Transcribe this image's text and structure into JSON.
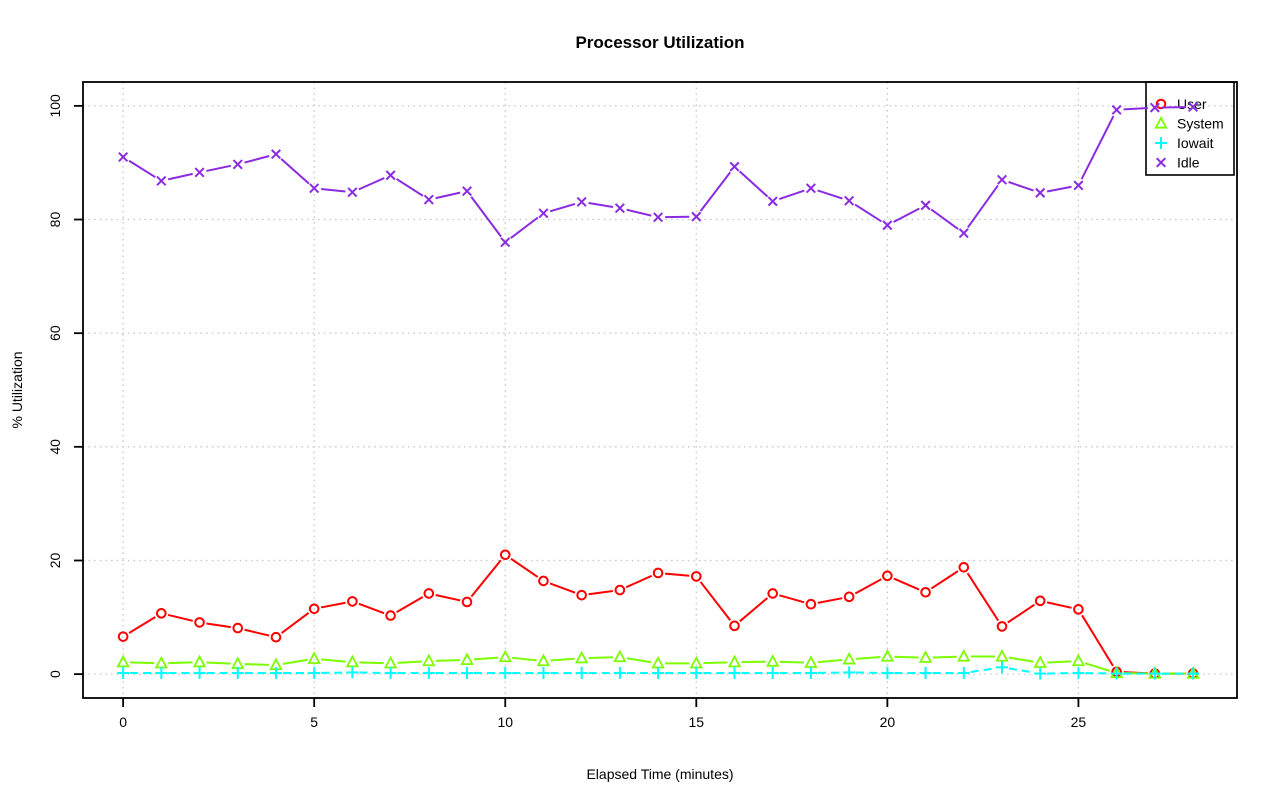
{
  "chart_data": {
    "type": "line",
    "title": "Processor Utilization",
    "xlabel": "Elapsed Time (minutes)",
    "ylabel": "% Utilization",
    "x": [
      0,
      1,
      2,
      3,
      4,
      5,
      6,
      7,
      8,
      9,
      10,
      11,
      12,
      13,
      14,
      15,
      16,
      17,
      18,
      19,
      20,
      21,
      22,
      23,
      24,
      25,
      26,
      27,
      28
    ],
    "series": [
      {
        "name": "User",
        "marker": "circle",
        "color": "#ff0000",
        "dash": "solid",
        "values": [
          6.6,
          10.7,
          9.1,
          8.1,
          6.5,
          11.5,
          12.8,
          10.3,
          14.2,
          12.7,
          21.0,
          16.4,
          13.9,
          14.8,
          17.8,
          17.2,
          8.5,
          14.2,
          12.3,
          13.6,
          17.3,
          14.4,
          18.8,
          8.4,
          12.9,
          11.4,
          0.4,
          0.1,
          0.1
        ]
      },
      {
        "name": "System",
        "marker": "triangle",
        "color": "#7cfc00",
        "dash": "solid",
        "values": [
          2.1,
          1.9,
          2.1,
          1.8,
          1.6,
          2.7,
          2.1,
          1.9,
          2.3,
          2.5,
          3.0,
          2.3,
          2.8,
          3.0,
          1.9,
          1.9,
          2.1,
          2.2,
          2.0,
          2.6,
          3.1,
          2.9,
          3.1,
          3.1,
          2.0,
          2.3,
          0.2,
          0.1,
          0.1
        ]
      },
      {
        "name": "Iowait",
        "marker": "plus",
        "color": "#00ffff",
        "dash": "dashed",
        "values": [
          0.2,
          0.2,
          0.2,
          0.2,
          0.2,
          0.2,
          0.3,
          0.2,
          0.2,
          0.2,
          0.2,
          0.2,
          0.2,
          0.2,
          0.2,
          0.2,
          0.2,
          0.2,
          0.2,
          0.3,
          0.2,
          0.2,
          0.2,
          1.2,
          0.1,
          0.2,
          0.1,
          0.1,
          0.1
        ]
      },
      {
        "name": "Idle",
        "marker": "x",
        "color": "#8a2be2",
        "dash": "solid",
        "values": [
          91.0,
          86.8,
          88.3,
          89.7,
          91.5,
          85.5,
          84.8,
          87.8,
          83.5,
          85.0,
          76.0,
          81.1,
          83.1,
          82.0,
          80.4,
          80.5,
          89.3,
          83.2,
          85.5,
          83.3,
          79.0,
          82.5,
          77.6,
          87.0,
          84.7,
          86.0,
          99.3,
          99.7,
          99.8
        ]
      }
    ],
    "x_ticks": [
      "0",
      "5",
      "10",
      "15",
      "20",
      "25"
    ],
    "y_ticks": [
      "0",
      "20",
      "40",
      "60",
      "80",
      "100"
    ],
    "xlim": [
      -1.05,
      29.15
    ],
    "ylim": [
      -4.2,
      104.2
    ],
    "grid": true,
    "legend_position": "top-right",
    "colors": {
      "grid": "#c9c9c9",
      "axis": "#000000",
      "background": "#ffffff"
    }
  }
}
